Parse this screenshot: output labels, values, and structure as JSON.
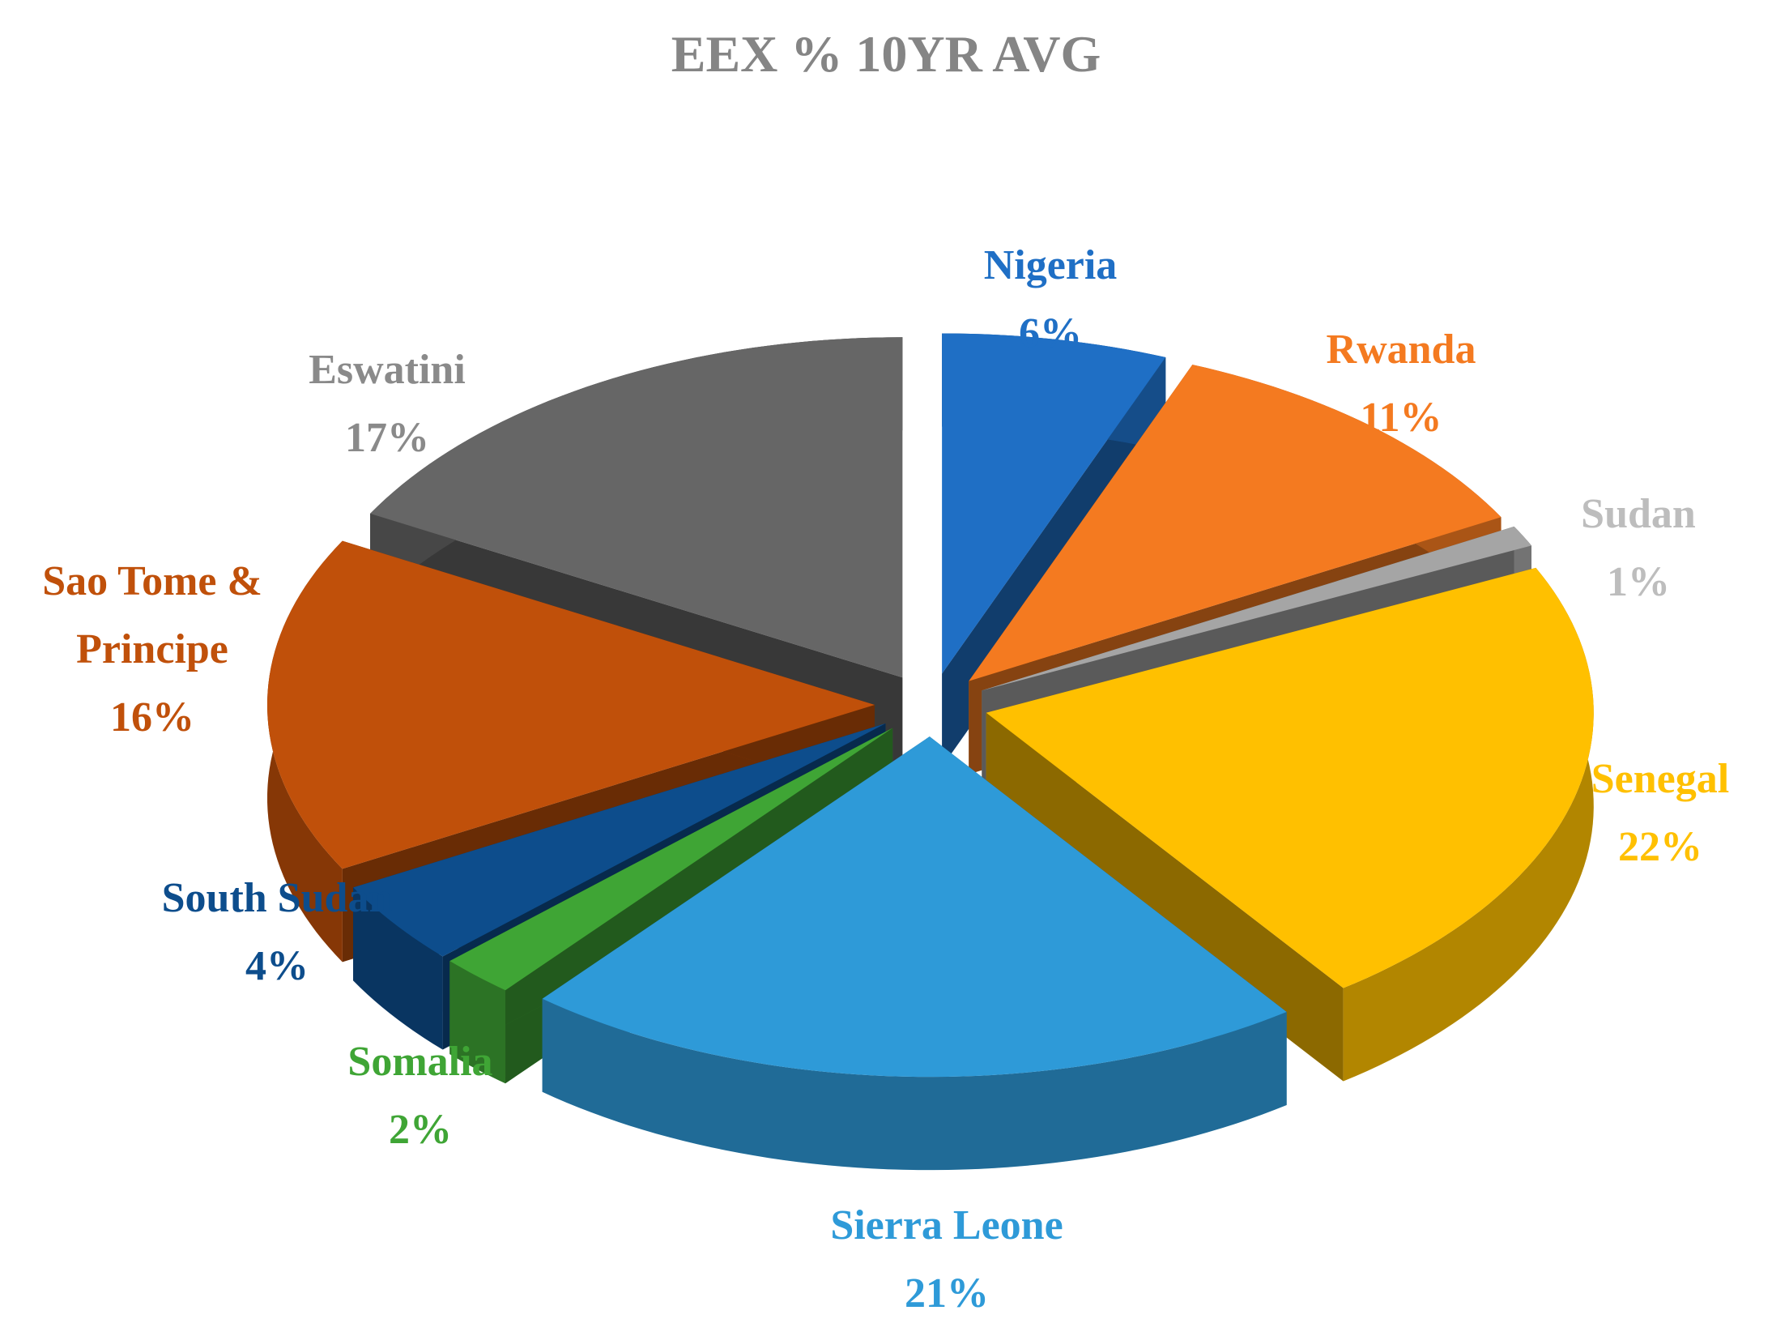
{
  "chart_data": {
    "type": "pie3d",
    "title": "EEX % 10YR AVG",
    "categories": [
      "Nigeria",
      "Rwanda",
      "Sudan",
      "Senegal",
      "Sierra Leone",
      "Somalia",
      "South Sudan",
      "Sao Tome & Principe",
      "Eswatini"
    ],
    "values": [
      6,
      11,
      1,
      22,
      21,
      2,
      4,
      16,
      17
    ],
    "value_labels": [
      "6%",
      "11%",
      "1%",
      "22%",
      "21%",
      "2%",
      "4%",
      "16%",
      "17%"
    ],
    "colors": [
      "#1f6fc5",
      "#f47a20",
      "#a5a5a5",
      "#ffc000",
      "#2e9ad8",
      "#3fa535",
      "#0d4d8c",
      "#c0500a",
      "#666666"
    ]
  }
}
